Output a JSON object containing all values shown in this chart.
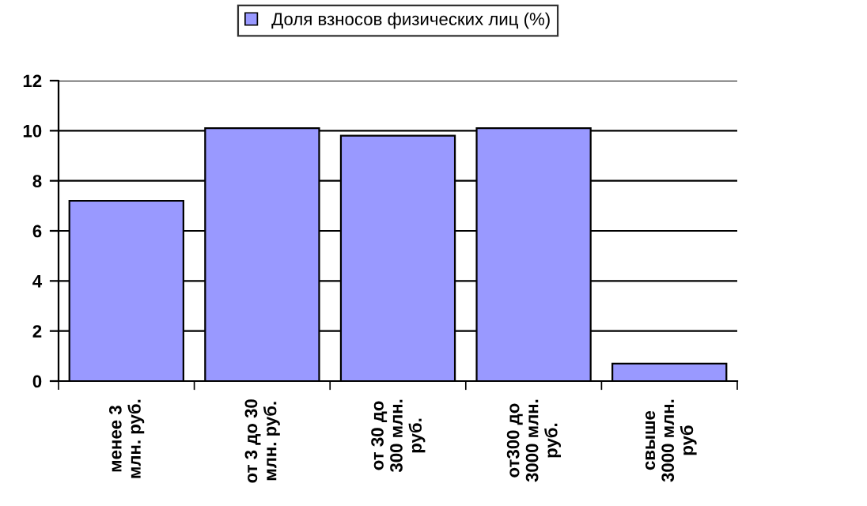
{
  "chart_data": {
    "type": "bar",
    "categories": [
      "менее 3\nмлн. руб.",
      "от 3 до 30\nмлн. руб.",
      "от 30 до\n300 млн.\nруб.",
      "от300 до\n3000 млн.\nруб.",
      "свыше\n3000 млн.\nруб"
    ],
    "series": [
      {
        "name": "Доля взносов физических лиц (%)",
        "color": "#9999ff",
        "values": [
          7.2,
          10.1,
          9.8,
          10.1,
          0.7
        ]
      }
    ],
    "ylim": [
      0,
      12
    ],
    "yticks": [
      0,
      2,
      4,
      6,
      8,
      10,
      12
    ],
    "grid": "y",
    "legend": "top"
  }
}
